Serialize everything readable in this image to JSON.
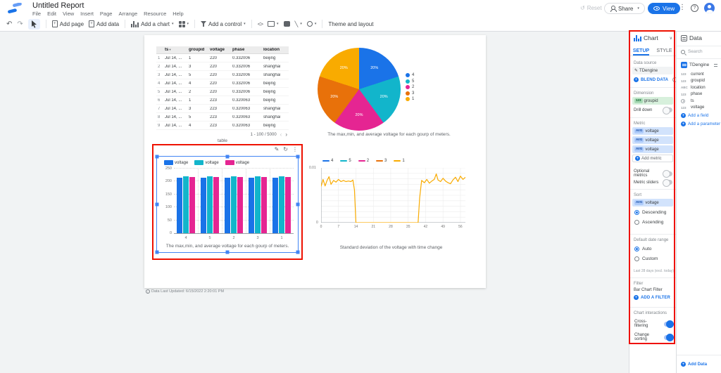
{
  "header": {
    "title": "Untitled Report",
    "menus": [
      "File",
      "Edit",
      "View",
      "Insert",
      "Page",
      "Arrange",
      "Resource",
      "Help"
    ],
    "reset": "Reset",
    "share": "Share",
    "view": "View"
  },
  "toolbar": {
    "add_page": "Add page",
    "add_data": "Add data",
    "add_chart": "Add a chart",
    "add_control": "Add a control",
    "embed": "<>",
    "theme": "Theme and layout"
  },
  "colors": {
    "accent": "#1a73e8",
    "annotation": "#ee1100",
    "series": [
      "#1a73e8",
      "#12b5cb",
      "#e52592",
      "#e8710a",
      "#f9ab00"
    ]
  },
  "canvas": {
    "footer_note": "Data Last Updated: 6/15/2022 2:20:01 PM"
  },
  "chart_data": [
    {
      "id": "data-table",
      "type": "table",
      "caption": "table",
      "columns": [
        "ts",
        "groupid",
        "voltage",
        "phase",
        "location"
      ],
      "sort_column": "ts",
      "rows": [
        [
          "1",
          "Jul 14, ...",
          "1",
          "220",
          "0.332006",
          "beijing"
        ],
        [
          "2",
          "Jul 14, ...",
          "3",
          "220",
          "0.332006",
          "shanghai"
        ],
        [
          "3",
          "Jul 14, ...",
          "5",
          "220",
          "0.332006",
          "shanghai"
        ],
        [
          "4",
          "Jul 14, ...",
          "4",
          "220",
          "0.332006",
          "beijing"
        ],
        [
          "5",
          "Jul 14, ...",
          "2",
          "220",
          "0.332006",
          "beijing"
        ],
        [
          "6",
          "Jul 14, ...",
          "1",
          "223",
          "0.320063",
          "beijing"
        ],
        [
          "7",
          "Jul 14, ...",
          "3",
          "223",
          "0.320063",
          "shanghai"
        ],
        [
          "8",
          "Jul 14, ...",
          "5",
          "223",
          "0.320063",
          "shanghai"
        ],
        [
          "9",
          "Jul 14, ...",
          "4",
          "223",
          "0.320063",
          "beijing"
        ]
      ],
      "pagination": "1 - 100 / 5000"
    },
    {
      "id": "pie",
      "type": "pie",
      "title": "The max,min, and average voltage for each gourp of meters.",
      "labels": [
        "4",
        "5",
        "2",
        "3",
        "1"
      ],
      "values": [
        20,
        20,
        20,
        20,
        20
      ],
      "slice_labels": [
        "20%",
        "20%",
        "20%",
        "20%",
        "20%"
      ],
      "colors": [
        "#1a73e8",
        "#12b5cb",
        "#e52592",
        "#e8710a",
        "#f9ab00"
      ],
      "legend_position": "right"
    },
    {
      "id": "bar",
      "type": "bar",
      "title": "The max,min, and average voltage for each gourp of meters.",
      "categories": [
        "4",
        "5",
        "2",
        "3",
        "1"
      ],
      "series": [
        {
          "name": "voltage",
          "color": "#1a73e8",
          "values": [
            214,
            214,
            214,
            214,
            214
          ]
        },
        {
          "name": "voltage",
          "color": "#12b5cb",
          "values": [
            220,
            220,
            220,
            220,
            220
          ]
        },
        {
          "name": "voltage",
          "color": "#e52592",
          "values": [
            218,
            218,
            218,
            218,
            218
          ]
        }
      ],
      "ylim": [
        0,
        250
      ],
      "yticks": [
        0,
        50,
        100,
        150,
        200,
        250
      ],
      "legend_position": "top",
      "grid": true
    },
    {
      "id": "line",
      "type": "line",
      "title": "Standard deviation of the voltage with time change",
      "legend": [
        {
          "name": "4",
          "color": "#1a73e8"
        },
        {
          "name": "5",
          "color": "#12b5cb"
        },
        {
          "name": "2",
          "color": "#e52592"
        },
        {
          "name": "3",
          "color": "#e8710a"
        },
        {
          "name": "1",
          "color": "#f9ab00"
        }
      ],
      "ylim": [
        0,
        0.01
      ],
      "yticks": [
        "0",
        "0.01"
      ],
      "xlim": [
        0,
        58
      ],
      "xticks": [
        0,
        7,
        14,
        21,
        28,
        35,
        42,
        49,
        56
      ],
      "grid": true,
      "visible_series": {
        "name": "1",
        "color": "#f9ab00",
        "x": [
          0,
          0.8,
          1.6,
          2.4,
          3.2,
          4,
          5,
          6,
          7,
          8,
          9,
          10,
          11,
          12,
          12.8,
          13.4,
          14,
          15,
          18,
          22,
          26,
          30,
          34,
          38,
          39,
          39.6,
          40.4,
          41.5,
          42.5,
          43.5,
          44.5,
          45.5,
          46.3,
          47,
          48,
          49,
          50,
          51,
          52,
          53,
          54,
          55,
          56,
          57,
          58
        ],
        "y": [
          0.0066,
          0.0079,
          0.0067,
          0.0077,
          0.0084,
          0.007,
          0.0077,
          0.0074,
          0.0079,
          0.0075,
          0.0077,
          0.0075,
          0.0076,
          0.0075,
          0.0078,
          0.006,
          0,
          0,
          0,
          0,
          0,
          0,
          0,
          0,
          0,
          0.0045,
          0.0077,
          0.0073,
          0.0079,
          0.0072,
          0.0076,
          0.0079,
          0.0089,
          0.0078,
          0.0075,
          0.0081,
          0.0076,
          0.0073,
          0.0071,
          0.0078,
          0.0083,
          0.0075,
          0.0085,
          0.0079,
          0.0083
        ]
      }
    }
  ],
  "chart_panel": {
    "title": "Chart",
    "tabs": [
      "SETUP",
      "STYLE"
    ],
    "active_tab": "SETUP",
    "data_source_label": "Data source",
    "data_source": "TDengine",
    "blend_data": "BLEND DATA",
    "dimension_label": "Dimension",
    "dimension": {
      "badge": "123",
      "name": "groupid"
    },
    "drill_down": {
      "label": "Drill down",
      "on": false
    },
    "metric_label": "Metric",
    "metrics": [
      {
        "badge": "AVG",
        "name": "voltage"
      },
      {
        "badge": "AVG",
        "name": "voltage"
      },
      {
        "badge": "AVG",
        "name": "voltage"
      }
    ],
    "add_metric": "Add metric",
    "optional_metrics": {
      "label": "Optional metrics",
      "on": false
    },
    "metric_sliders": {
      "label": "Metric sliders",
      "on": false
    },
    "sort_label": "Sort",
    "sort_metric": {
      "badge": "AVG",
      "name": "voltage"
    },
    "sort_options": [
      {
        "label": "Descending",
        "selected": true
      },
      {
        "label": "Ascending",
        "selected": false
      }
    ],
    "date_range_label": "Default date range",
    "date_range_options": [
      {
        "label": "Auto",
        "selected": true
      },
      {
        "label": "Custom",
        "selected": false
      }
    ],
    "date_range_note": "Last 28 days (excl. today)",
    "filter_label": "Filter",
    "filter_name": "Bar Chart Filter",
    "add_filter": "ADD A FILTER",
    "interactions_label": "Chart interactions",
    "interactions": [
      {
        "label": "Cross-filtering",
        "on": true
      },
      {
        "label": "Change sorting",
        "on": true
      }
    ]
  },
  "data_panel": {
    "title": "Data",
    "search_placeholder": "Search",
    "source": "TDengine",
    "fields": [
      {
        "type": "123",
        "name": "current"
      },
      {
        "type": "123",
        "name": "groupid"
      },
      {
        "type": "ABC",
        "name": "location"
      },
      {
        "type": "123",
        "name": "phase"
      },
      {
        "type": "date",
        "name": "ts"
      },
      {
        "type": "123",
        "name": "voltage"
      }
    ],
    "add_field": "Add a field",
    "add_parameter": "Add a parameter",
    "add_data": "Add Data"
  }
}
